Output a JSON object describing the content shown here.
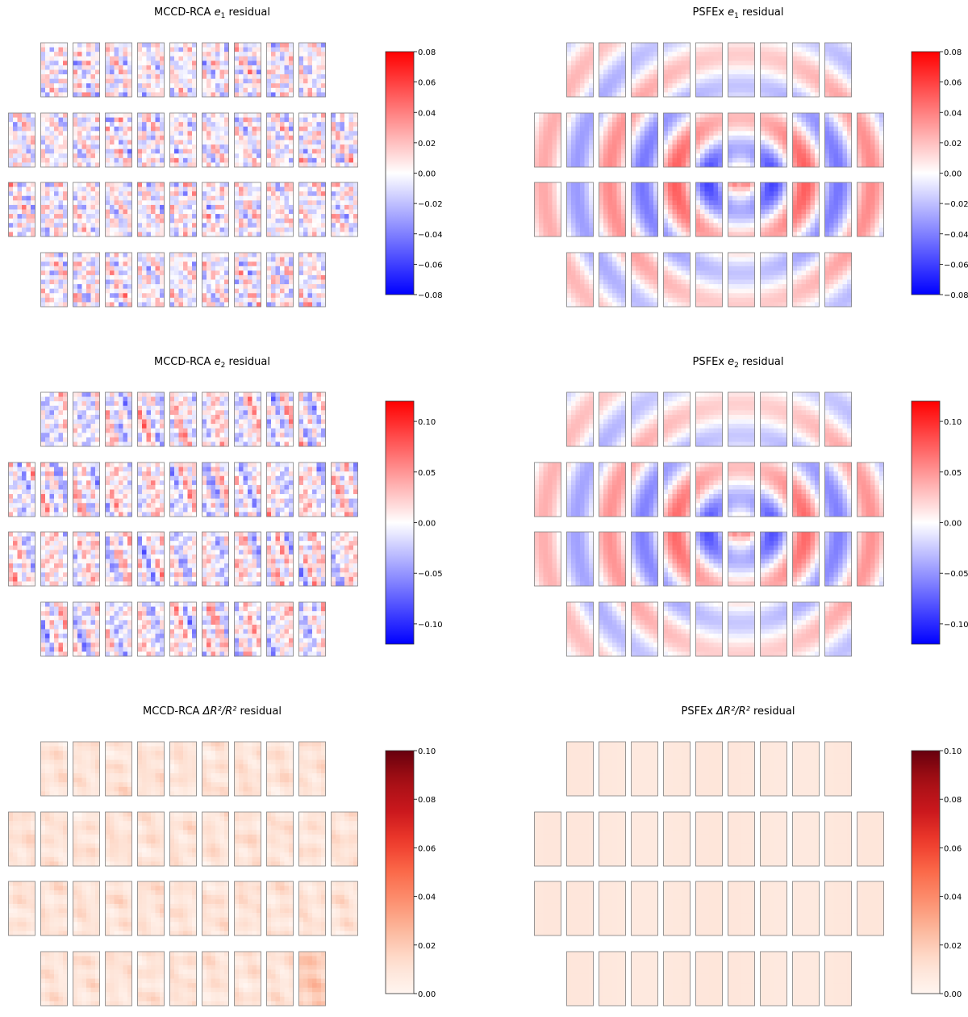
{
  "figure": {
    "description_text": "",
    "panels_order": [
      "mccd-e1",
      "psfex-e1",
      "mccd-e2",
      "psfex-e2",
      "mccd-r2",
      "psfex-r2"
    ]
  },
  "chart_data": [
    {
      "id": "mccd-e1",
      "type": "heatmap",
      "title_prefix": "MCCD-RCA ",
      "title_quantity": "e",
      "title_sub": "1",
      "title_suffix": " residual",
      "colormap": "bwr",
      "vmin": -0.08,
      "vmax": 0.08,
      "colorbar_ticks": [
        0.08,
        0.06,
        0.04,
        0.02,
        0.0,
        -0.02,
        -0.04,
        -0.06,
        -0.08
      ],
      "colorbar_tick_labels": [
        "0.08",
        "0.06",
        "0.04",
        "0.02",
        "0.00",
        "−0.02",
        "−0.04",
        "−0.06",
        "−0.08"
      ],
      "ccd_rows": [
        9,
        11,
        11,
        9
      ],
      "total_ccds": 40,
      "pattern": "noisy",
      "amplitude": 0.022
    },
    {
      "id": "psfex-e1",
      "type": "heatmap",
      "title_prefix": "PSFEx ",
      "title_quantity": "e",
      "title_sub": "1",
      "title_suffix": " residual",
      "colormap": "bwr",
      "vmin": -0.08,
      "vmax": 0.08,
      "colorbar_ticks": [
        0.08,
        0.06,
        0.04,
        0.02,
        0.0,
        -0.02,
        -0.04,
        -0.06,
        -0.08
      ],
      "colorbar_tick_labels": [
        "0.08",
        "0.06",
        "0.04",
        "0.02",
        "0.00",
        "−0.02",
        "−0.04",
        "−0.06",
        "−0.08"
      ],
      "ccd_rows": [
        9,
        11,
        11,
        9
      ],
      "total_ccds": 40,
      "pattern": "rings",
      "amplitude": 0.05
    },
    {
      "id": "mccd-e2",
      "type": "heatmap",
      "title_prefix": "MCCD-RCA ",
      "title_quantity": "e",
      "title_sub": "2",
      "title_suffix": " residual",
      "colormap": "bwr",
      "vmin": -0.12,
      "vmax": 0.12,
      "colorbar_ticks": [
        0.1,
        0.05,
        0.0,
        -0.05,
        -0.1
      ],
      "colorbar_tick_labels": [
        "0.10",
        "0.05",
        "0.00",
        "−0.05",
        "−0.10"
      ],
      "ccd_rows": [
        9,
        11,
        11,
        9
      ],
      "total_ccds": 40,
      "pattern": "noisy",
      "amplitude": 0.035
    },
    {
      "id": "psfex-e2",
      "type": "heatmap",
      "title_prefix": "PSFEx ",
      "title_quantity": "e",
      "title_sub": "2",
      "title_suffix": " residual",
      "colormap": "bwr",
      "vmin": -0.12,
      "vmax": 0.12,
      "colorbar_ticks": [
        0.1,
        0.05,
        0.0,
        -0.05,
        -0.1
      ],
      "colorbar_tick_labels": [
        "0.10",
        "0.05",
        "0.00",
        "−0.05",
        "−0.10"
      ],
      "ccd_rows": [
        9,
        11,
        11,
        9
      ],
      "total_ccds": 40,
      "pattern": "rings",
      "amplitude": 0.07
    },
    {
      "id": "mccd-r2",
      "type": "heatmap",
      "title_prefix": "MCCD-RCA ",
      "title_quantity": "ΔR²/R²",
      "title_sub": "",
      "title_suffix": " residual",
      "colormap": "Reds",
      "vmin": 0.0,
      "vmax": 0.1,
      "colorbar_ticks": [
        0.1,
        0.08,
        0.06,
        0.04,
        0.02,
        0.0
      ],
      "colorbar_tick_labels": [
        "0.10",
        "0.08",
        "0.06",
        "0.04",
        "0.02",
        "0.00"
      ],
      "ccd_rows": [
        9,
        11,
        11,
        9
      ],
      "total_ccds": 40,
      "pattern": "smooth-positive",
      "amplitude": 0.01
    },
    {
      "id": "psfex-r2",
      "type": "heatmap",
      "title_prefix": "PSFEx ",
      "title_quantity": "ΔR²/R²",
      "title_sub": "",
      "title_suffix": " residual",
      "colormap": "Reds",
      "vmin": 0.0,
      "vmax": 0.1,
      "colorbar_ticks": [
        0.1,
        0.08,
        0.06,
        0.04,
        0.02,
        0.0
      ],
      "colorbar_tick_labels": [
        "0.10",
        "0.08",
        "0.06",
        "0.04",
        "0.02",
        "0.00"
      ],
      "ccd_rows": [
        9,
        11,
        11,
        9
      ],
      "total_ccds": 40,
      "pattern": "flat-positive",
      "amplitude": 0.008
    }
  ]
}
